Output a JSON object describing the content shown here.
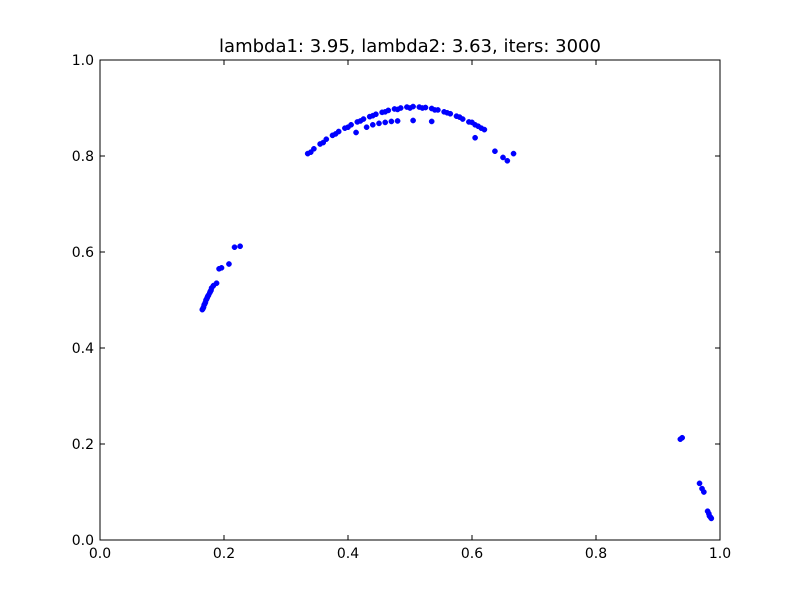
{
  "chart_data": {
    "type": "scatter",
    "title": "lambda1: 3.95, lambda2: 3.63, iters: 3000",
    "xlabel": "",
    "ylabel": "",
    "xlim": [
      0.0,
      1.0
    ],
    "ylim": [
      0.0,
      1.0
    ],
    "grid": false,
    "marker_color": "#0000ff",
    "x_ticks": [
      "0.0",
      "0.2",
      "0.4",
      "0.6",
      "0.8",
      "1.0"
    ],
    "y_ticks": [
      "0.0",
      "0.2",
      "0.4",
      "0.6",
      "0.8",
      "1.0"
    ],
    "arc_points": [
      [
        0.335,
        0.805
      ],
      [
        0.345,
        0.815
      ],
      [
        0.355,
        0.825
      ],
      [
        0.365,
        0.835
      ],
      [
        0.375,
        0.843
      ],
      [
        0.385,
        0.851
      ],
      [
        0.395,
        0.858
      ],
      [
        0.405,
        0.865
      ],
      [
        0.415,
        0.871
      ],
      [
        0.425,
        0.877
      ],
      [
        0.435,
        0.882
      ],
      [
        0.445,
        0.887
      ],
      [
        0.455,
        0.891
      ],
      [
        0.465,
        0.895
      ],
      [
        0.475,
        0.898
      ],
      [
        0.485,
        0.9
      ],
      [
        0.495,
        0.902
      ],
      [
        0.505,
        0.903
      ],
      [
        0.515,
        0.902
      ],
      [
        0.525,
        0.901
      ],
      [
        0.535,
        0.899
      ],
      [
        0.545,
        0.896
      ],
      [
        0.555,
        0.892
      ],
      [
        0.565,
        0.888
      ],
      [
        0.575,
        0.883
      ],
      [
        0.585,
        0.877
      ],
      [
        0.595,
        0.871
      ],
      [
        0.605,
        0.865
      ],
      [
        0.615,
        0.858
      ],
      [
        0.62,
        0.855
      ],
      [
        0.34,
        0.808
      ],
      [
        0.36,
        0.828
      ],
      [
        0.38,
        0.846
      ],
      [
        0.4,
        0.86
      ],
      [
        0.42,
        0.873
      ],
      [
        0.44,
        0.884
      ],
      [
        0.46,
        0.892
      ],
      [
        0.48,
        0.897
      ],
      [
        0.5,
        0.9
      ],
      [
        0.52,
        0.9
      ],
      [
        0.54,
        0.896
      ],
      [
        0.56,
        0.89
      ],
      [
        0.58,
        0.881
      ],
      [
        0.6,
        0.87
      ],
      [
        0.61,
        0.862
      ]
    ],
    "inner_arc_points": [
      [
        0.43,
        0.86
      ],
      [
        0.44,
        0.865
      ],
      [
        0.45,
        0.868
      ],
      [
        0.46,
        0.87
      ],
      [
        0.47,
        0.872
      ],
      [
        0.48,
        0.873
      ],
      [
        0.505,
        0.874
      ],
      [
        0.535,
        0.872
      ],
      [
        0.413,
        0.849
      ]
    ],
    "left_cluster_points": [
      [
        0.165,
        0.48
      ],
      [
        0.167,
        0.485
      ],
      [
        0.168,
        0.49
      ],
      [
        0.17,
        0.495
      ],
      [
        0.171,
        0.5
      ],
      [
        0.173,
        0.505
      ],
      [
        0.175,
        0.51
      ],
      [
        0.177,
        0.515
      ],
      [
        0.179,
        0.52
      ],
      [
        0.18,
        0.525
      ],
      [
        0.183,
        0.53
      ],
      [
        0.188,
        0.535
      ],
      [
        0.192,
        0.565
      ],
      [
        0.196,
        0.567
      ],
      [
        0.208,
        0.575
      ],
      [
        0.217,
        0.61
      ],
      [
        0.226,
        0.612
      ],
      [
        0.166,
        0.482
      ],
      [
        0.169,
        0.492
      ],
      [
        0.172,
        0.502
      ],
      [
        0.174,
        0.508
      ],
      [
        0.178,
        0.518
      ]
    ],
    "right_scatter_points": [
      [
        0.605,
        0.838
      ],
      [
        0.637,
        0.81
      ],
      [
        0.65,
        0.797
      ],
      [
        0.657,
        0.79
      ],
      [
        0.667,
        0.805
      ]
    ],
    "lower_right_points": [
      [
        0.936,
        0.21
      ],
      [
        0.939,
        0.213
      ],
      [
        0.967,
        0.118
      ],
      [
        0.971,
        0.107
      ],
      [
        0.974,
        0.1
      ],
      [
        0.98,
        0.06
      ],
      [
        0.982,
        0.055
      ],
      [
        0.983,
        0.05
      ],
      [
        0.985,
        0.047
      ],
      [
        0.986,
        0.045
      ]
    ]
  }
}
